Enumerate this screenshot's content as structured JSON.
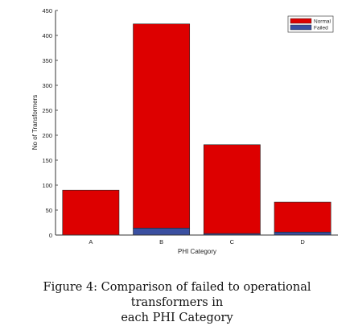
{
  "chart_data": {
    "type": "bar",
    "stacked": true,
    "categories": [
      "A",
      "B",
      "C",
      "D"
    ],
    "series": [
      {
        "name": "Failed",
        "color": "#3a4fa0",
        "values": [
          0,
          14,
          3,
          6
        ]
      },
      {
        "name": "Normal",
        "color": "#dd0000",
        "values": [
          90,
          409,
          178,
          60
        ]
      }
    ],
    "xlabel": "PHI Category",
    "ylabel": "No of Transformers",
    "ylim": [
      0,
      450
    ],
    "yticks": [
      0,
      50,
      100,
      150,
      200,
      250,
      300,
      350,
      400,
      450
    ],
    "legend_position": "top-right",
    "grid": false
  },
  "caption": {
    "line1": "Figure 4: Comparison of failed to operational transformers in",
    "line2": "each PHI Category"
  }
}
